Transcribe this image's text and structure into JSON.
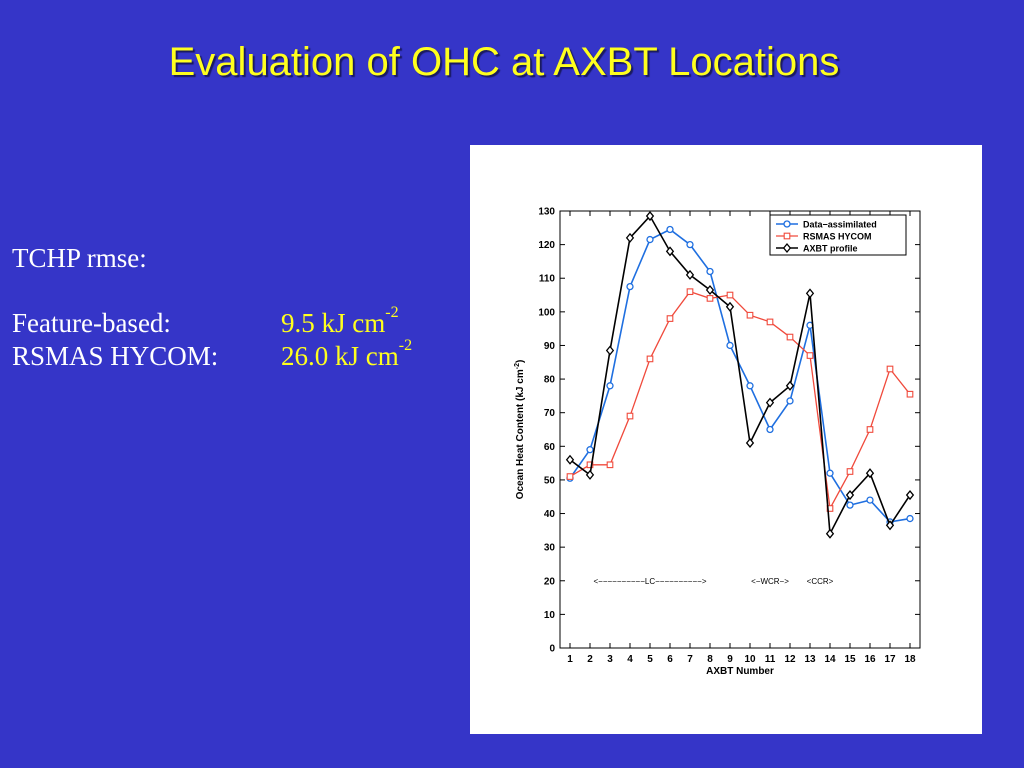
{
  "slide": {
    "title": "Evaluation of OHC at AXBT Locations"
  },
  "stats": {
    "heading": "TCHP rmse:",
    "rows": [
      {
        "label": "Feature-based:",
        "value": "9.5 kJ cm",
        "exponent": "-2"
      },
      {
        "label": "RSMAS HYCOM:",
        "value": "26.0 kJ cm",
        "exponent": "-2"
      }
    ]
  },
  "colors": {
    "background": "#3535c8",
    "title": "#ffff1e",
    "data_assimilated": "#1f6fe0",
    "rsmas_hycom": "#f04a3c",
    "axbt_profile": "#000000"
  },
  "chart_data": {
    "type": "line",
    "xlabel": "AXBT Number",
    "ylabel": "Ocean Heat Content (kJ cm",
    "ylabel_exponent": "-2",
    "ylabel_close": ")",
    "xlim": [
      0.5,
      18.5
    ],
    "ylim": [
      0,
      130
    ],
    "x": [
      1,
      2,
      3,
      4,
      5,
      6,
      7,
      8,
      9,
      10,
      11,
      12,
      13,
      14,
      15,
      16,
      17,
      18
    ],
    "yticks": [
      0,
      10,
      20,
      30,
      40,
      50,
      60,
      70,
      80,
      90,
      100,
      110,
      120,
      130
    ],
    "grid": false,
    "legend_position": "top-right",
    "series": [
      {
        "name": "Data−assimilated",
        "marker": "circle",
        "values": [
          50.5,
          59,
          78,
          107.5,
          121.5,
          124.5,
          120,
          112,
          90,
          78,
          65,
          73.5,
          96,
          52,
          42.5,
          44,
          37.5,
          38.5
        ]
      },
      {
        "name": "RSMAS HYCOM",
        "marker": "square",
        "values": [
          51,
          54.5,
          54.5,
          69,
          86,
          98,
          106,
          104,
          105,
          99,
          97,
          92.5,
          87,
          41.5,
          52.5,
          65,
          83,
          75.5
        ]
      },
      {
        "name": "AXBT profile",
        "marker": "diamond",
        "values": [
          56,
          51.5,
          88.5,
          122,
          128.5,
          118,
          111,
          106.5,
          101.5,
          61,
          73,
          78,
          105.5,
          34,
          45.5,
          52,
          36.5,
          45.5
        ]
      }
    ],
    "annotations": [
      {
        "text": "<−−−−−−−−−−LC−−−−−−−−−−>",
        "x": 5,
        "y": 20
      },
      {
        "text": "<−WCR−>",
        "x": 11,
        "y": 20
      },
      {
        "text": "<CCR>",
        "x": 13.5,
        "y": 20
      }
    ]
  }
}
